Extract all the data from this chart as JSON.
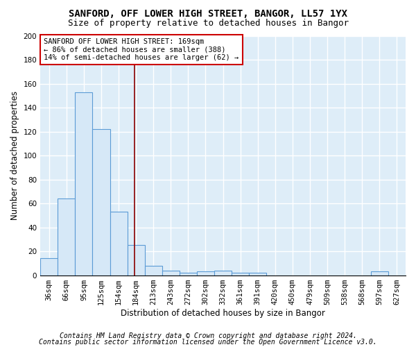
{
  "title": "SANFORD, OFF LOWER HIGH STREET, BANGOR, LL57 1YX",
  "subtitle": "Size of property relative to detached houses in Bangor",
  "xlabel": "Distribution of detached houses by size in Bangor",
  "ylabel": "Number of detached properties",
  "categories": [
    "36sqm",
    "66sqm",
    "95sqm",
    "125sqm",
    "154sqm",
    "184sqm",
    "213sqm",
    "243sqm",
    "272sqm",
    "302sqm",
    "332sqm",
    "361sqm",
    "391sqm",
    "420sqm",
    "450sqm",
    "479sqm",
    "509sqm",
    "538sqm",
    "568sqm",
    "597sqm",
    "627sqm"
  ],
  "values": [
    14,
    64,
    153,
    122,
    53,
    25,
    8,
    4,
    2,
    3,
    4,
    2,
    2,
    0,
    0,
    0,
    0,
    0,
    0,
    3,
    0
  ],
  "bar_color": "#d6e8f7",
  "bar_edge_color": "#5b9bd5",
  "vline_x_index": 4.93,
  "vline_color": "#8b0000",
  "annotation_text": "SANFORD OFF LOWER HIGH STREET: 169sqm\n← 86% of detached houses are smaller (388)\n14% of semi-detached houses are larger (62) →",
  "annotation_box_color": "#ffffff",
  "annotation_box_edge": "#cc0000",
  "ylim": [
    0,
    200
  ],
  "yticks": [
    0,
    20,
    40,
    60,
    80,
    100,
    120,
    140,
    160,
    180,
    200
  ],
  "footer_line1": "Contains HM Land Registry data © Crown copyright and database right 2024.",
  "footer_line2": "Contains public sector information licensed under the Open Government Licence v3.0.",
  "background_color": "#deedf8",
  "grid_color": "#ffffff",
  "fig_bg_color": "#ffffff",
  "title_fontsize": 10,
  "subtitle_fontsize": 9,
  "axis_label_fontsize": 8.5,
  "tick_fontsize": 7.5,
  "annotation_fontsize": 7.5,
  "footer_fontsize": 7
}
